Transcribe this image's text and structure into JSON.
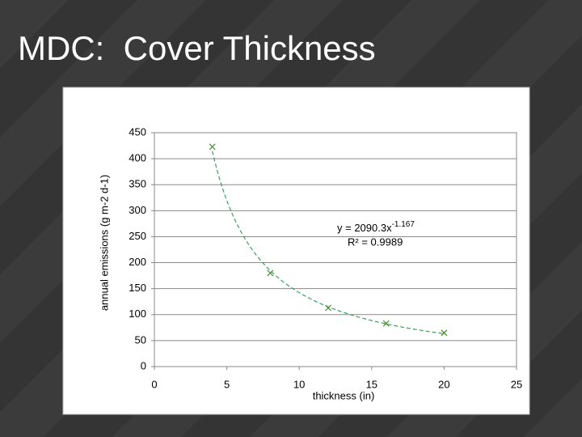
{
  "title": "MDC:  Cover Thickness",
  "chart_data": {
    "type": "scatter",
    "x_label": "thickness (in)",
    "y_label": "annual emissions (g m-2 d-1)",
    "x": [
      4,
      8,
      12,
      16,
      20
    ],
    "series": [
      {
        "name": "annual emissions",
        "color": "#4f8f3a",
        "values": [
          423,
          180,
          113,
          83,
          65
        ]
      }
    ],
    "xlim": [
      0,
      25
    ],
    "xticks": [
      0,
      5,
      10,
      15,
      20,
      25
    ],
    "ylim": [
      0,
      450
    ],
    "yticks": [
      0,
      50,
      100,
      150,
      200,
      250,
      300,
      350,
      400,
      450
    ],
    "grid": true,
    "trendline": {
      "coefficient": 2090.3,
      "exponent": -1.167,
      "color": "#3aa05a",
      "label": "y = 2090.3x",
      "exponent_label": "-1.167",
      "r2_label": "R² = 0.9989"
    }
  }
}
